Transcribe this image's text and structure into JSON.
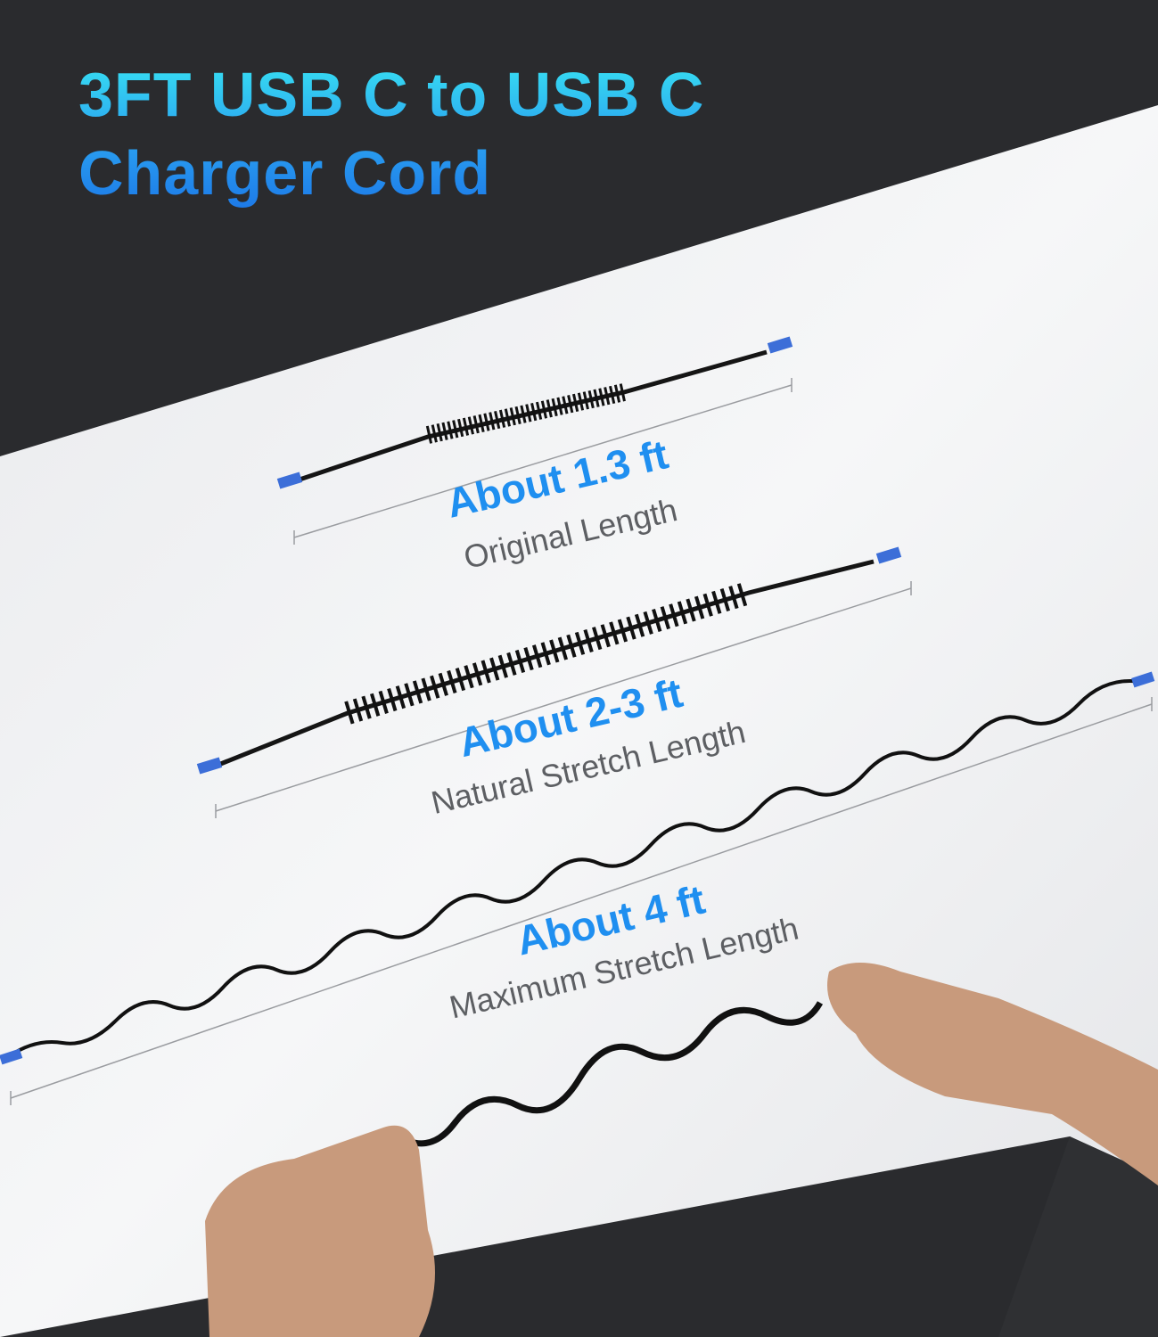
{
  "title": {
    "line1": "3FT USB C to USB C",
    "line2": "Charger Cord"
  },
  "lengths": [
    {
      "value": "About 1.3 ft",
      "label": "Original Length"
    },
    {
      "value": "About 2-3 ft",
      "label": "Natural Stretch Length"
    },
    {
      "value": "About 4 ft",
      "label": "Maximum Stretch Length"
    }
  ],
  "colors": {
    "background": "#2a2b2e",
    "accent": "#1f8ff0",
    "surface": "#f2f3f5"
  }
}
